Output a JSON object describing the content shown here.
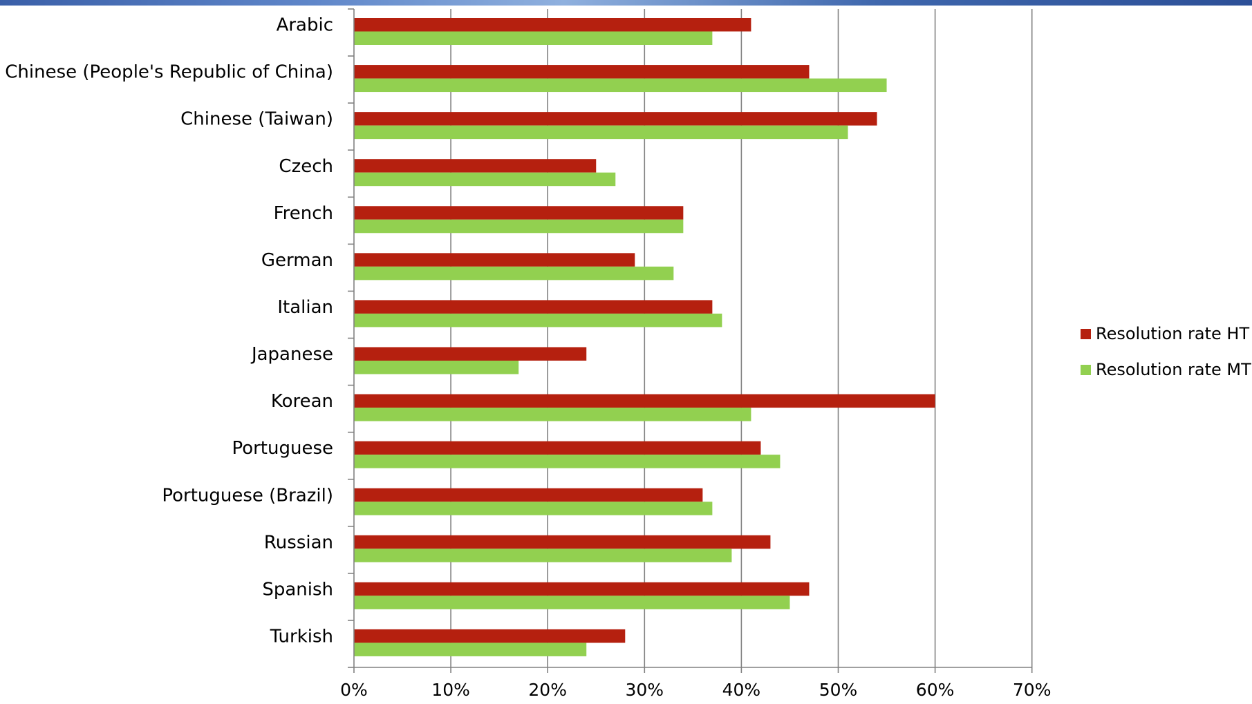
{
  "chart_data": {
    "type": "bar",
    "orientation": "horizontal",
    "categories": [
      "Arabic",
      "Chinese (People's Republic of China)",
      "Chinese (Taiwan)",
      "Czech",
      "French",
      "German",
      "Italian",
      "Japanese",
      "Korean",
      "Portuguese",
      "Portuguese (Brazil)",
      "Russian",
      "Spanish",
      "Turkish"
    ],
    "series": [
      {
        "name": "Resolution rate HT",
        "color": "#b5200f",
        "values": [
          41,
          47,
          54,
          25,
          34,
          29,
          37,
          24,
          60,
          42,
          36,
          43,
          47,
          28
        ]
      },
      {
        "name": "Resolution rate MT",
        "color": "#92d050",
        "values": [
          37,
          55,
          51,
          27,
          34,
          33,
          38,
          17,
          41,
          44,
          37,
          39,
          45,
          24
        ]
      }
    ],
    "xlim": [
      0,
      70
    ],
    "x_ticks": [
      "0%",
      "10%",
      "20%",
      "30%",
      "40%",
      "50%",
      "60%",
      "70%"
    ],
    "grid": "vertical major gridlines",
    "legend_position": "right",
    "title": "",
    "xlabel": "",
    "ylabel": ""
  },
  "colors": {
    "gridline": "#808080",
    "axis": "#808080",
    "header_band": "#3a5fa8"
  }
}
